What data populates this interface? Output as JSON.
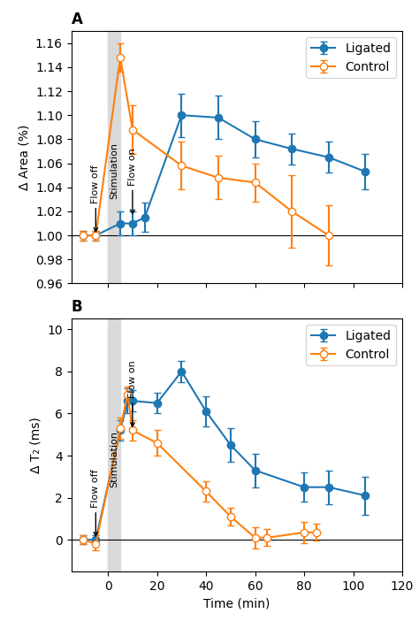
{
  "chart_data": [
    {
      "type": "line",
      "title": "A",
      "y_label": "Δ Area (%)",
      "xlim": [
        -15,
        120
      ],
      "xticks": [
        0,
        20,
        40,
        60,
        80,
        100,
        120
      ],
      "ylim": [
        0.96,
        1.17
      ],
      "yticks": [
        0.96,
        0.98,
        {
          "value": 1.0,
          "label": "1.00"
        },
        1.02,
        1.04,
        1.06,
        1.08,
        {
          "value": 1.1,
          "label": "1.10"
        },
        1.12,
        1.14,
        1.16
      ],
      "tick_labels": "y",
      "legend": "upper right",
      "shading": [
        0,
        5
      ],
      "baseline": 1.0,
      "series": [
        {
          "name": "Ligated",
          "marker": "circle",
          "x": [
            -10,
            -5,
            5,
            10,
            15,
            30,
            45,
            60,
            75,
            90,
            105
          ],
          "values": [
            1.0,
            1.0,
            1.01,
            1.01,
            1.015,
            1.1,
            1.098,
            1.08,
            1.072,
            1.065,
            1.053
          ],
          "error": [
            0.004,
            0.004,
            0.01,
            0.01,
            0.012,
            0.018,
            0.018,
            0.015,
            0.013,
            0.013,
            0.015
          ]
        },
        {
          "name": "Control",
          "marker": "open_circle",
          "x": [
            -10,
            -5,
            5,
            10,
            30,
            45,
            60,
            75,
            90
          ],
          "values": [
            1.0,
            1.0,
            1.148,
            1.088,
            1.058,
            1.048,
            1.044,
            1.02,
            1.0
          ],
          "error": [
            0.004,
            0.004,
            0.012,
            0.02,
            0.02,
            0.018,
            0.016,
            0.03,
            0.025
          ]
        }
      ],
      "annotations": [
        {
          "text": "Flow off",
          "x": -5,
          "y": 1.0,
          "arrow": true
        },
        {
          "text": "Flow on",
          "x": 10,
          "y": 1.015,
          "arrow": true
        },
        {
          "text": "Stimulation",
          "x": 2.5,
          "y": 1.03,
          "arrow": false
        }
      ]
    },
    {
      "type": "line",
      "title": "B",
      "y_label": "Δ T₂ (ms)",
      "x_label": "Time (min)",
      "xlim": [
        -15,
        120
      ],
      "xticks": [
        0,
        20,
        40,
        60,
        80,
        100,
        120
      ],
      "ylim": [
        -1.5,
        10.5
      ],
      "yticks": [
        0,
        2,
        4,
        6,
        8,
        10
      ],
      "legend": "upper right",
      "shading": [
        0,
        5
      ],
      "baseline": 0.0,
      "series": [
        {
          "name": "Ligated",
          "marker": "circle",
          "x": [
            -10,
            -5,
            5,
            8,
            10,
            20,
            30,
            40,
            50,
            60,
            80,
            90,
            105
          ],
          "values": [
            0.0,
            0.0,
            5.2,
            6.6,
            6.6,
            6.5,
            8.0,
            6.1,
            4.5,
            3.3,
            2.5,
            2.5,
            2.1
          ],
          "error": [
            0.2,
            0.2,
            0.5,
            0.6,
            0.5,
            0.5,
            0.5,
            0.7,
            0.8,
            0.8,
            0.7,
            0.8,
            0.9
          ]
        },
        {
          "name": "Control",
          "marker": "open_circle",
          "x": [
            -10,
            -5,
            5,
            8,
            10,
            20,
            40,
            50,
            60,
            65,
            80,
            85
          ],
          "values": [
            0.0,
            -0.2,
            5.3,
            6.9,
            5.2,
            4.6,
            2.3,
            1.1,
            0.1,
            0.1,
            0.35,
            0.35
          ],
          "error": [
            0.2,
            0.3,
            0.5,
            0.4,
            0.5,
            0.6,
            0.5,
            0.4,
            0.5,
            0.4,
            0.5,
            0.4
          ]
        }
      ],
      "annotations": [
        {
          "text": "Flow off",
          "x": -5,
          "y": 0.0,
          "arrow": true
        },
        {
          "text": "Flow on",
          "x": 10,
          "y": 5.2,
          "arrow": true
        },
        {
          "text": "Stimulation",
          "x": 2.5,
          "y": 2.5,
          "arrow": false
        }
      ]
    }
  ]
}
